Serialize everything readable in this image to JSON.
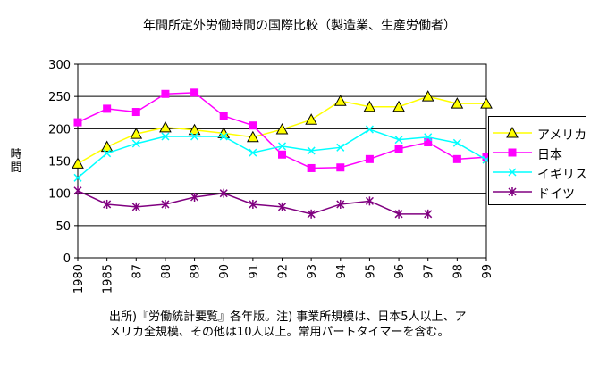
{
  "chart_data": {
    "type": "line",
    "title": "年間所定外労働時間の国際比較（製造業、生産労働者）",
    "ylabel": "時間",
    "xlabel": "",
    "ylim": [
      0,
      300
    ],
    "yticks": [
      "0",
      "50",
      "100",
      "150",
      "200",
      "250",
      "300"
    ],
    "categories": [
      "1980",
      "1985",
      "87",
      "88",
      "89",
      "90",
      "91",
      "92",
      "93",
      "94",
      "95",
      "96",
      "97",
      "98",
      "99"
    ],
    "grid": "horizontal",
    "legend_position": "right",
    "series": [
      {
        "name": "アメリカ",
        "color": "#ffff00",
        "stroke": "#000000",
        "marker": "triangle",
        "values": [
          146,
          172,
          192,
          202,
          198,
          193,
          187,
          199,
          214,
          243,
          234,
          234,
          250,
          239,
          239
        ]
      },
      {
        "name": "日本",
        "color": "#ff00ff",
        "marker": "square",
        "values": [
          210,
          231,
          226,
          254,
          256,
          220,
          205,
          160,
          139,
          140,
          153,
          169,
          179,
          153,
          156
        ]
      },
      {
        "name": "イギリス",
        "color": "#00ffff",
        "marker": "x",
        "values": [
          124,
          162,
          177,
          188,
          188,
          188,
          163,
          173,
          166,
          171,
          199,
          183,
          187,
          178,
          152
        ]
      },
      {
        "name": "ドイツ",
        "color": "#800080",
        "marker": "star",
        "values": [
          104,
          83,
          79,
          83,
          94,
          100,
          83,
          79,
          68,
          83,
          88,
          68,
          68,
          null,
          null
        ]
      }
    ]
  },
  "note": "出所)『労働統計要覧』各年版。注) 事業所規模は、日本5人以上、アメリカ全規模、その他は10人以上。常用パートタイマーを含む。"
}
